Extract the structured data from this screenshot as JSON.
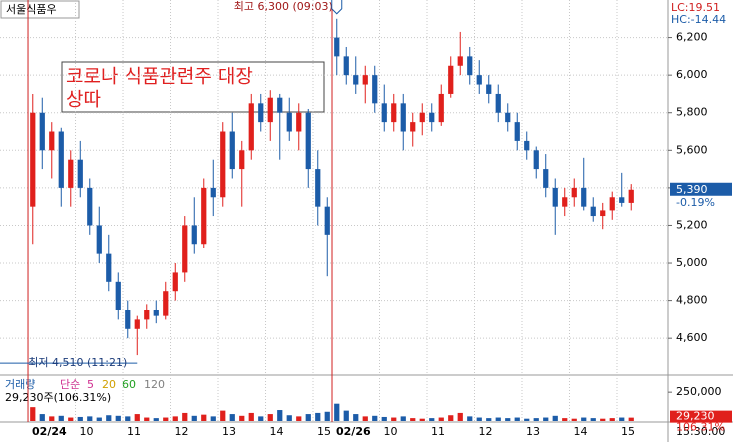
{
  "chart_data": {
    "type": "candlestick",
    "title": "서울식품우",
    "lc_label": "LC:19.51",
    "hc_label": "HC:-14.44",
    "annotation": [
      "코로나 식품관련주 대장",
      "상따"
    ],
    "up_color": "#e0201c",
    "down_color": "#1c5ca8",
    "ohlc": [
      [
        5300,
        5900,
        5100,
        5800
      ],
      [
        5800,
        5880,
        5500,
        5600
      ],
      [
        5600,
        5750,
        5450,
        5700
      ],
      [
        5700,
        5720,
        5300,
        5400
      ],
      [
        5400,
        5600,
        5300,
        5550
      ],
      [
        5550,
        5650,
        5350,
        5400
      ],
      [
        5400,
        5450,
        5150,
        5200
      ],
      [
        5200,
        5300,
        5000,
        5050
      ],
      [
        5050,
        5150,
        4850,
        4900
      ],
      [
        4900,
        4950,
        4700,
        4750
      ],
      [
        4750,
        4800,
        4600,
        4650
      ],
      [
        4650,
        4720,
        4510,
        4700
      ],
      [
        4700,
        4780,
        4650,
        4750
      ],
      [
        4750,
        4800,
        4680,
        4720
      ],
      [
        4720,
        4900,
        4700,
        4850
      ],
      [
        4850,
        5000,
        4800,
        4950
      ],
      [
        4950,
        5250,
        4900,
        5200
      ],
      [
        5200,
        5350,
        5050,
        5100
      ],
      [
        5100,
        5450,
        5080,
        5400
      ],
      [
        5400,
        5550,
        5250,
        5350
      ],
      [
        5350,
        5750,
        5300,
        5700
      ],
      [
        5700,
        5800,
        5450,
        5500
      ],
      [
        5500,
        5650,
        5300,
        5600
      ],
      [
        5600,
        5900,
        5550,
        5850
      ],
      [
        5850,
        5900,
        5700,
        5750
      ],
      [
        5750,
        5920,
        5650,
        5880
      ],
      [
        5880,
        5900,
        5550,
        5800
      ],
      [
        5800,
        5880,
        5650,
        5700
      ],
      [
        5700,
        5850,
        5600,
        5800
      ],
      [
        5800,
        5820,
        5400,
        5500
      ],
      [
        5500,
        5600,
        5200,
        5300
      ],
      [
        5300,
        5350,
        4930,
        5150
      ],
      [
        6200,
        6300,
        6000,
        6100
      ],
      [
        6100,
        6150,
        5950,
        6000
      ],
      [
        6000,
        6100,
        5900,
        5950
      ],
      [
        5950,
        6050,
        5850,
        6000
      ],
      [
        6000,
        6050,
        5800,
        5850
      ],
      [
        5850,
        5950,
        5700,
        5750
      ],
      [
        5750,
        5900,
        5700,
        5850
      ],
      [
        5850,
        5900,
        5600,
        5700
      ],
      [
        5700,
        5800,
        5620,
        5750
      ],
      [
        5750,
        5850,
        5680,
        5800
      ],
      [
        5800,
        5850,
        5700,
        5750
      ],
      [
        5750,
        5950,
        5730,
        5900
      ],
      [
        5900,
        6100,
        5880,
        6050
      ],
      [
        6050,
        6230,
        6000,
        6100
      ],
      [
        6100,
        6150,
        5950,
        6000
      ],
      [
        6000,
        6080,
        5900,
        5950
      ],
      [
        5950,
        6000,
        5850,
        5900
      ],
      [
        5900,
        5950,
        5750,
        5800
      ],
      [
        5800,
        5850,
        5700,
        5750
      ],
      [
        5750,
        5800,
        5600,
        5650
      ],
      [
        5650,
        5700,
        5550,
        5600
      ],
      [
        5600,
        5620,
        5450,
        5500
      ],
      [
        5500,
        5580,
        5350,
        5400
      ],
      [
        5400,
        5450,
        5150,
        5300
      ],
      [
        5300,
        5400,
        5250,
        5350
      ],
      [
        5350,
        5450,
        5300,
        5400
      ],
      [
        5400,
        5560,
        5280,
        5300
      ],
      [
        5300,
        5350,
        5220,
        5250
      ],
      [
        5250,
        5320,
        5180,
        5280
      ],
      [
        5280,
        5380,
        5230,
        5350
      ],
      [
        5350,
        5480,
        5300,
        5320
      ],
      [
        5320,
        5420,
        5280,
        5390
      ]
    ],
    "volume": [
      120000,
      60000,
      40000,
      45000,
      30000,
      35000,
      40000,
      30000,
      50000,
      45000,
      40000,
      60000,
      30000,
      25000,
      30000,
      40000,
      70000,
      45000,
      55000,
      40000,
      90000,
      60000,
      45000,
      70000,
      40000,
      60000,
      95000,
      50000,
      40000,
      60000,
      70000,
      80000,
      150000,
      90000,
      60000,
      40000,
      45000,
      35000,
      30000,
      40000,
      25000,
      20000,
      25000,
      30000,
      50000,
      70000,
      40000,
      30000,
      25000,
      30000,
      25000,
      30000,
      20000,
      25000,
      30000,
      45000,
      25000,
      20000,
      30000,
      25000,
      20000,
      25000,
      30000,
      29230
    ],
    "xlim": [
      -3.45,
      66.87
    ],
    "xticks": [
      {
        "value": -0.5,
        "label": "02/24"
      },
      {
        "value": 4.5,
        "label": "10"
      },
      {
        "value": 9.5,
        "label": "11"
      },
      {
        "value": 14.5,
        "label": "12"
      },
      {
        "value": 19.5,
        "label": "13"
      },
      {
        "value": 24.5,
        "label": "14"
      },
      {
        "value": 29.5,
        "label": "15"
      },
      {
        "value": 31.5,
        "label": "02/26"
      },
      {
        "value": 36.5,
        "label": "10"
      },
      {
        "value": 41.5,
        "label": "11"
      },
      {
        "value": 46.5,
        "label": "12"
      },
      {
        "value": 51.5,
        "label": "13"
      },
      {
        "value": 56.5,
        "label": "14"
      },
      {
        "value": 61.5,
        "label": "15"
      }
    ],
    "end_time": "15:30:00",
    "ylim": [
      4420,
      6400
    ],
    "yticks": [
      {
        "value": 4600,
        "label": "4,600"
      },
      {
        "value": 4800,
        "label": "4,800"
      },
      {
        "value": 5000,
        "label": "5,000"
      },
      {
        "value": 5200,
        "label": "5,200"
      },
      {
        "value": 5400,
        "label": "5,400"
      },
      {
        "value": 5600,
        "label": "5,600"
      },
      {
        "value": 5800,
        "label": "5,800"
      },
      {
        "value": 6000,
        "label": "6,000"
      },
      {
        "value": 6200,
        "label": "6,200"
      }
    ],
    "high": {
      "index": 32,
      "value": 6300,
      "label": "최고 6,300 (09:03)"
    },
    "low": {
      "index": 11,
      "value": 4510,
      "label": "최저 4,510 (11:21)"
    },
    "last": {
      "value": 5390,
      "label": "5,390",
      "change": "-0.19%"
    },
    "volume_legend": [
      "거래량",
      "단순",
      "5",
      "20",
      "60",
      "120"
    ],
    "volume_legend_colors": [
      "#1c5ca8",
      "#d03090",
      "#d0a000",
      "#20a020",
      "#808080"
    ],
    "volume_info": "29,230주(106.31%)",
    "y2lim": [
      0,
      390000
    ],
    "y2ticks": [
      {
        "value": 250000,
        "label": "250,000"
      }
    ],
    "volume_last": {
      "value": 29230,
      "label": "29,230",
      "ratio": "106.31%"
    }
  }
}
